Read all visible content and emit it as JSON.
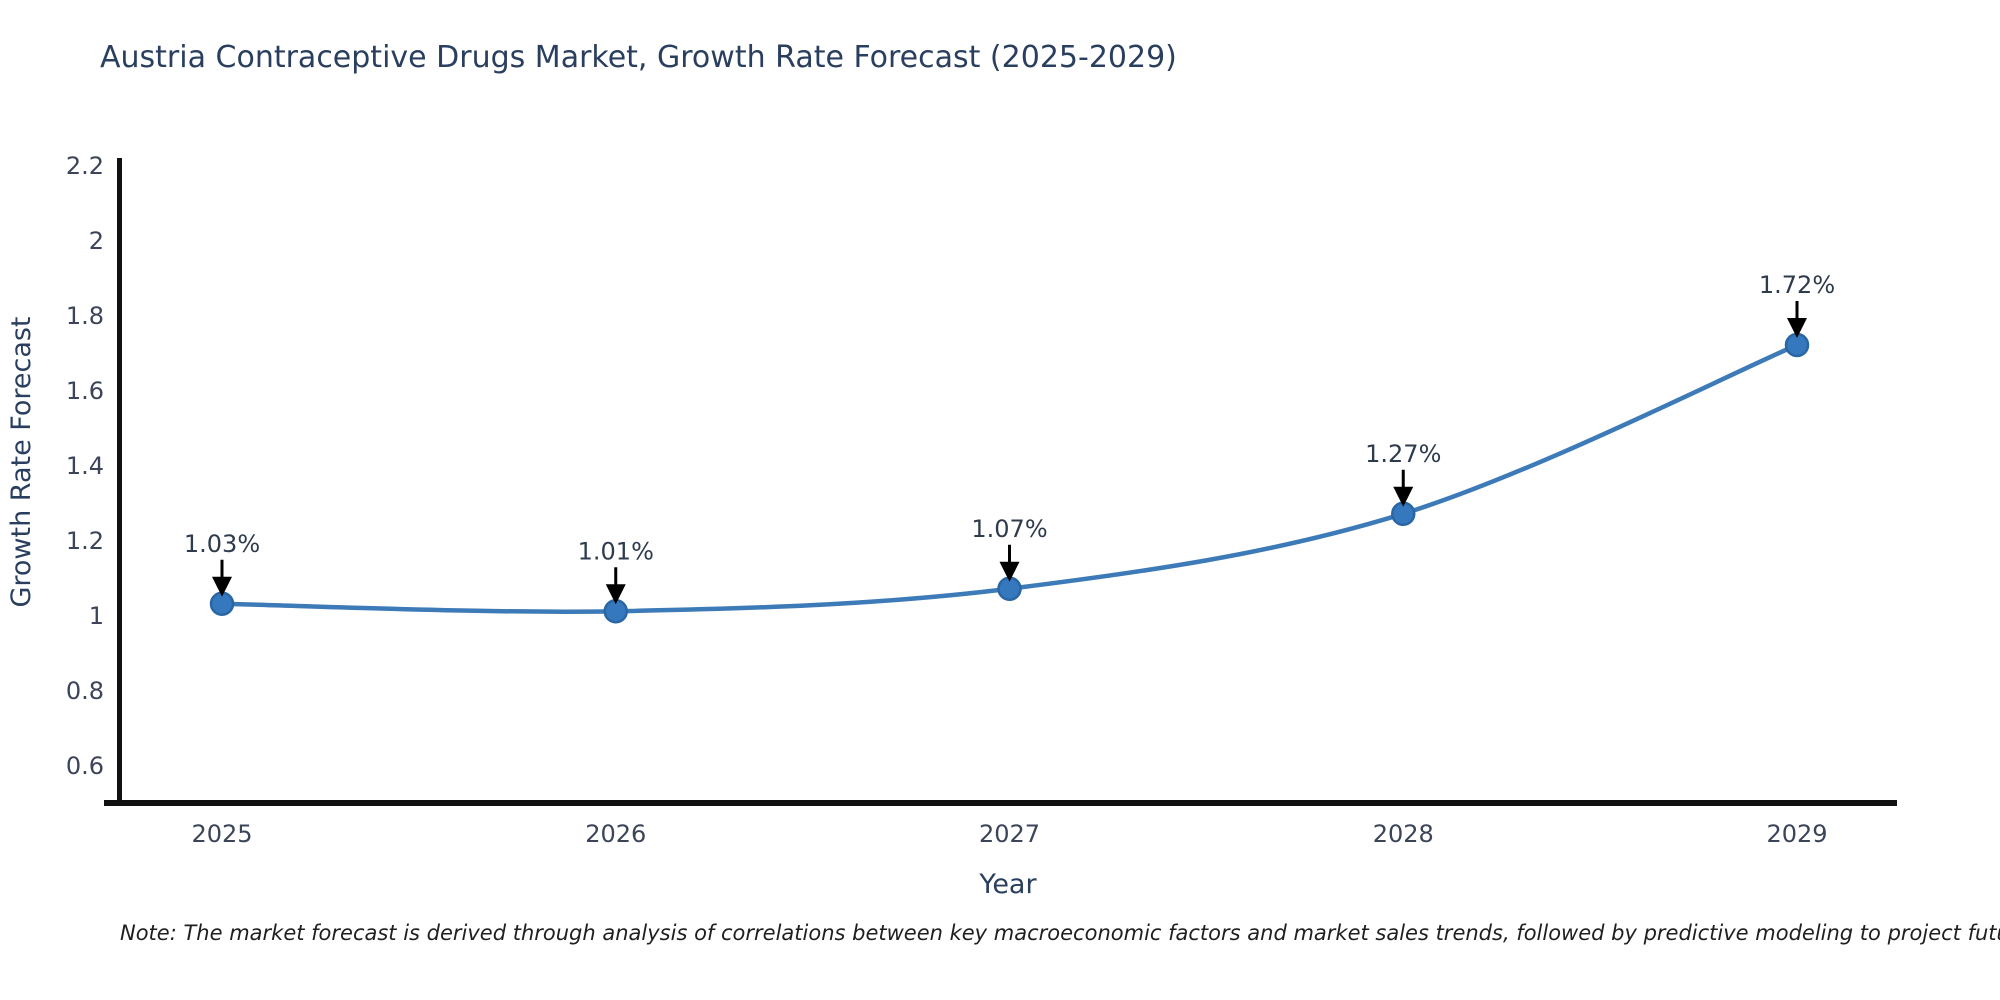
{
  "title": "Austria Contraceptive Drugs Market, Growth Rate Forecast (2025-2029)",
  "note": "Note: The market forecast is derived through analysis of correlations between key macroeconomic factors and market sales trends, followed by predictive modeling to project future sales",
  "chart_data": {
    "type": "line",
    "title": "Austria Contraceptive Drugs Market, Growth Rate Forecast (2025-2029)",
    "xlabel": "Year",
    "ylabel": "Growth Rate Forecast",
    "categories": [
      "2025",
      "2026",
      "2027",
      "2028",
      "2029"
    ],
    "values": [
      1.03,
      1.01,
      1.07,
      1.27,
      1.72
    ],
    "point_labels": [
      "1.03%",
      "1.01%",
      "1.07%",
      "1.27%",
      "1.72%"
    ],
    "y_ticks": [
      {
        "value": 0.6,
        "label": "0.6"
      },
      {
        "value": 0.8,
        "label": "0.8"
      },
      {
        "value": 1.0,
        "label": "1"
      },
      {
        "value": 1.2,
        "label": "1.2"
      },
      {
        "value": 1.4,
        "label": "1.4"
      },
      {
        "value": 1.6,
        "label": "1.6"
      },
      {
        "value": 1.8,
        "label": "1.8"
      },
      {
        "value": 2.0,
        "label": "2"
      },
      {
        "value": 2.2,
        "label": "2.2"
      }
    ],
    "ylim": [
      0.5,
      2.21
    ],
    "grid": false,
    "legend": false,
    "line_shape": "spline",
    "marker": "circle",
    "colors": {
      "line": "#3d7ab8",
      "marker_fill": "#3578bd",
      "marker_edge": "#2a66a3",
      "axis": "#111111",
      "title_text": "#2a3f5f",
      "tick_text": "#3b4458",
      "annotation_text": "#2e3b4d",
      "arrow": "#000000"
    }
  }
}
